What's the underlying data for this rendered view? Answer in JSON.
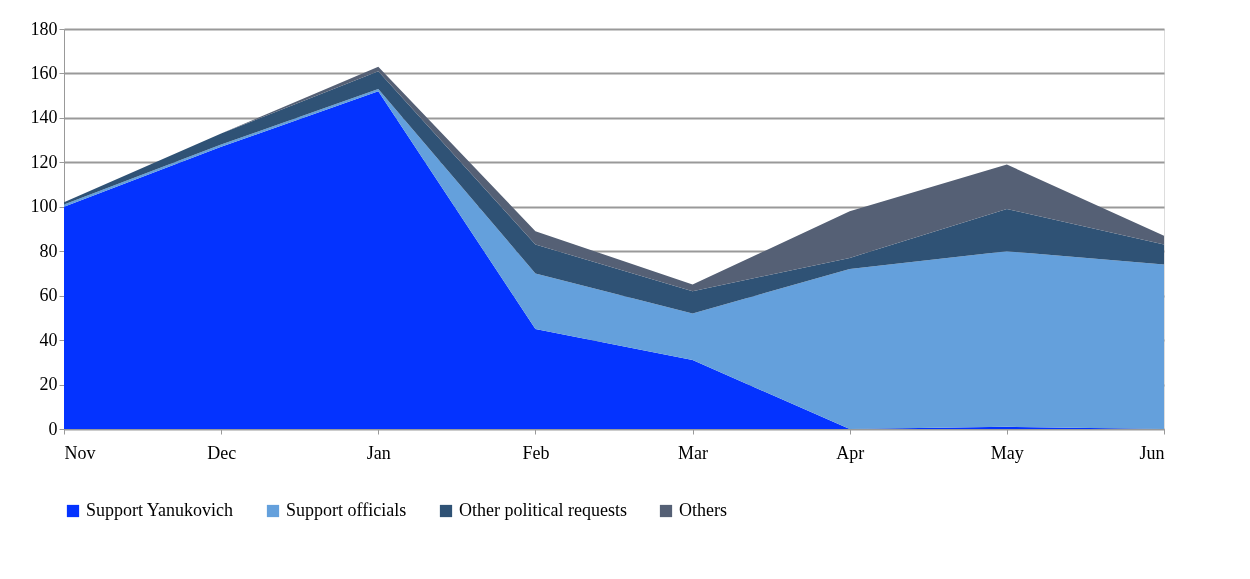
{
  "chart_data": {
    "type": "area",
    "stacked": true,
    "categories": [
      "Nov",
      "Dec",
      "Jan",
      "Feb",
      "Mar",
      "Apr",
      "May",
      "Jun"
    ],
    "series": [
      {
        "name": "Support Yanukovich",
        "color": "#0433ff",
        "values": [
          100,
          127,
          152,
          45,
          31,
          0,
          1,
          0
        ]
      },
      {
        "name": "Support officials",
        "color": "#64a0dc",
        "values": [
          1,
          1,
          1,
          25,
          21,
          72,
          79,
          74
        ]
      },
      {
        "name": "Other political requests",
        "color": "#2f5275",
        "values": [
          1,
          5,
          8,
          13,
          10,
          5,
          19,
          9
        ]
      },
      {
        "name": "Others",
        "color": "#556075",
        "values": [
          0,
          0,
          2,
          6,
          3,
          21,
          20,
          4
        ]
      }
    ],
    "ylim": [
      0,
      180
    ],
    "yticks": [
      0,
      20,
      40,
      60,
      80,
      100,
      120,
      140,
      160,
      180
    ],
    "grid": "y",
    "legend": "bottom"
  }
}
